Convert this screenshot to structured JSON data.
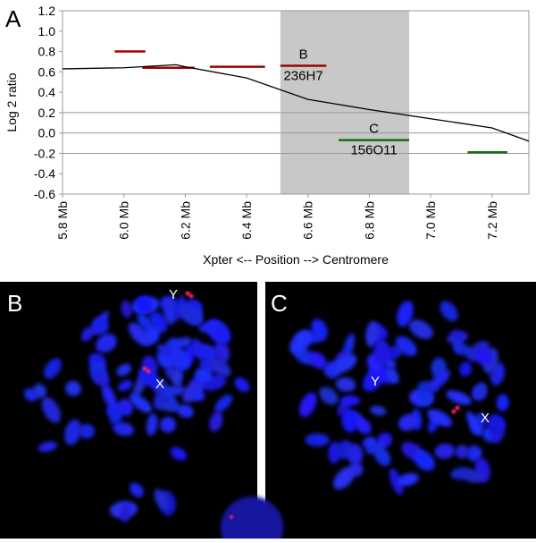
{
  "figure_label": "A",
  "chart_data": {
    "type": "line",
    "ylabel": "Log 2 ratio",
    "xlabel": "Xpter <-- Position --> Centromere",
    "x": [
      5.8,
      6.0,
      6.17,
      6.2,
      6.4,
      6.6,
      6.8,
      7.0,
      7.2,
      7.32
    ],
    "values": [
      0.63,
      0.64,
      0.67,
      0.65,
      0.54,
      0.33,
      0.23,
      0.14,
      0.05,
      -0.08
    ],
    "color": "#000000",
    "xlim": [
      5.8,
      7.32
    ],
    "ylim": [
      -0.6,
      1.2
    ],
    "xticks": [
      {
        "value": 5.8,
        "label": "5.8 Mb"
      },
      {
        "value": 6.0,
        "label": "6.0 Mb"
      },
      {
        "value": 6.2,
        "label": "6.2 Mb"
      },
      {
        "value": 6.4,
        "label": "6.4 Mb"
      },
      {
        "value": 6.6,
        "label": "6.6 Mb"
      },
      {
        "value": 6.8,
        "label": "6.8 Mb"
      },
      {
        "value": 7.0,
        "label": "7.0 Mb"
      },
      {
        "value": 7.2,
        "label": "7.2 Mb"
      }
    ],
    "yticks": [
      1.2,
      {
        "value": 1,
        "label": "1.0"
      },
      0.8,
      0.6,
      0.4,
      0.2,
      {
        "value": 0,
        "label": "0.0"
      },
      -0.2,
      -0.4,
      -0.6
    ],
    "reference_lines": [
      0.2,
      0,
      -0.2
    ],
    "shaded_region": {
      "x": [
        6.51,
        6.93
      ],
      "color": "#c8c8c8"
    },
    "segments": [
      {
        "x": [
          5.97,
          6.07
        ],
        "value": 0.8,
        "color": "#a00000"
      },
      {
        "x": [
          6.06,
          6.23
        ],
        "value": 0.64,
        "color": "#a00000"
      },
      {
        "x": [
          6.28,
          6.46
        ],
        "value": 0.65,
        "color": "#a00000"
      },
      {
        "x": [
          6.51,
          6.66
        ],
        "value": 0.66,
        "color": "#a00000",
        "label": "B",
        "clone": "236H7"
      },
      {
        "x": [
          6.7,
          6.93
        ],
        "value": -0.07,
        "color": "#107010",
        "label": "C",
        "clone": "156O11"
      },
      {
        "x": [
          7.12,
          7.25
        ],
        "value": -0.19,
        "color": "#107010"
      }
    ]
  },
  "panels": [
    {
      "label": "B",
      "marks": [
        "Y",
        "X"
      ]
    },
    {
      "label": "C",
      "marks": [
        "Y",
        "X"
      ]
    }
  ]
}
